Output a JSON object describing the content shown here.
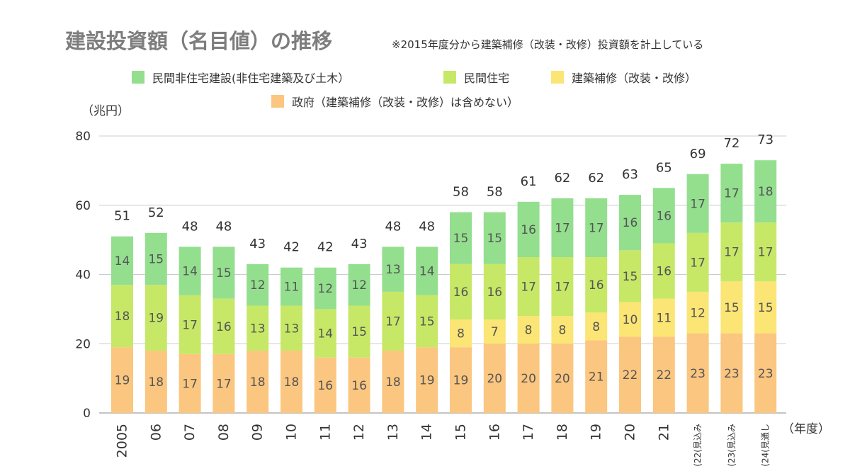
{
  "chart_data": {
    "type": "bar",
    "stacked": true,
    "title": "建設投資額（名目値）の推移",
    "subtitle": "※2015年度分から建築補修（改装・改修）投資額を計上している",
    "ylabel": "（兆円）",
    "xlabel": "（年度）",
    "ylim": [
      0,
      80
    ],
    "yticks": [
      0,
      20,
      40,
      60,
      80
    ],
    "grid": true,
    "categories": [
      "2005",
      "06",
      "07",
      "08",
      "09",
      "10",
      "11",
      "12",
      "13",
      "14",
      "15",
      "16",
      "17",
      "18",
      "19",
      "20",
      "21",
      "(22(見込み",
      "(23(見込み",
      "(24(見通し"
    ],
    "series": [
      {
        "name": "政府（建築補修（改装・改修）は含めない）",
        "color": "#fbc67f",
        "values": [
          19,
          18,
          17,
          17,
          18,
          18,
          16,
          16,
          18,
          19,
          19,
          20,
          20,
          20,
          21,
          22,
          22,
          23,
          23,
          23
        ]
      },
      {
        "name": "建築補修（改装・改修）",
        "color": "#fbe574",
        "values": [
          null,
          null,
          null,
          null,
          null,
          null,
          null,
          null,
          null,
          null,
          8,
          7,
          8,
          8,
          8,
          10,
          11,
          12,
          15,
          15
        ]
      },
      {
        "name": "民間住宅",
        "color": "#c7e867",
        "values": [
          18,
          19,
          17,
          16,
          13,
          13,
          14,
          15,
          17,
          15,
          16,
          16,
          17,
          17,
          16,
          15,
          16,
          17,
          17,
          17
        ]
      },
      {
        "name": "民間非住宅建設(非住宅建築及び土木）",
        "color": "#93df8e",
        "values": [
          14,
          15,
          14,
          15,
          12,
          11,
          12,
          12,
          13,
          14,
          15,
          15,
          16,
          17,
          17,
          16,
          16,
          17,
          17,
          18
        ]
      }
    ],
    "totals": [
      51,
      52,
      48,
      48,
      43,
      42,
      42,
      43,
      48,
      48,
      58,
      58,
      61,
      62,
      62,
      63,
      65,
      69,
      72,
      73
    ],
    "legend_order": [
      3,
      2,
      1,
      0
    ]
  }
}
